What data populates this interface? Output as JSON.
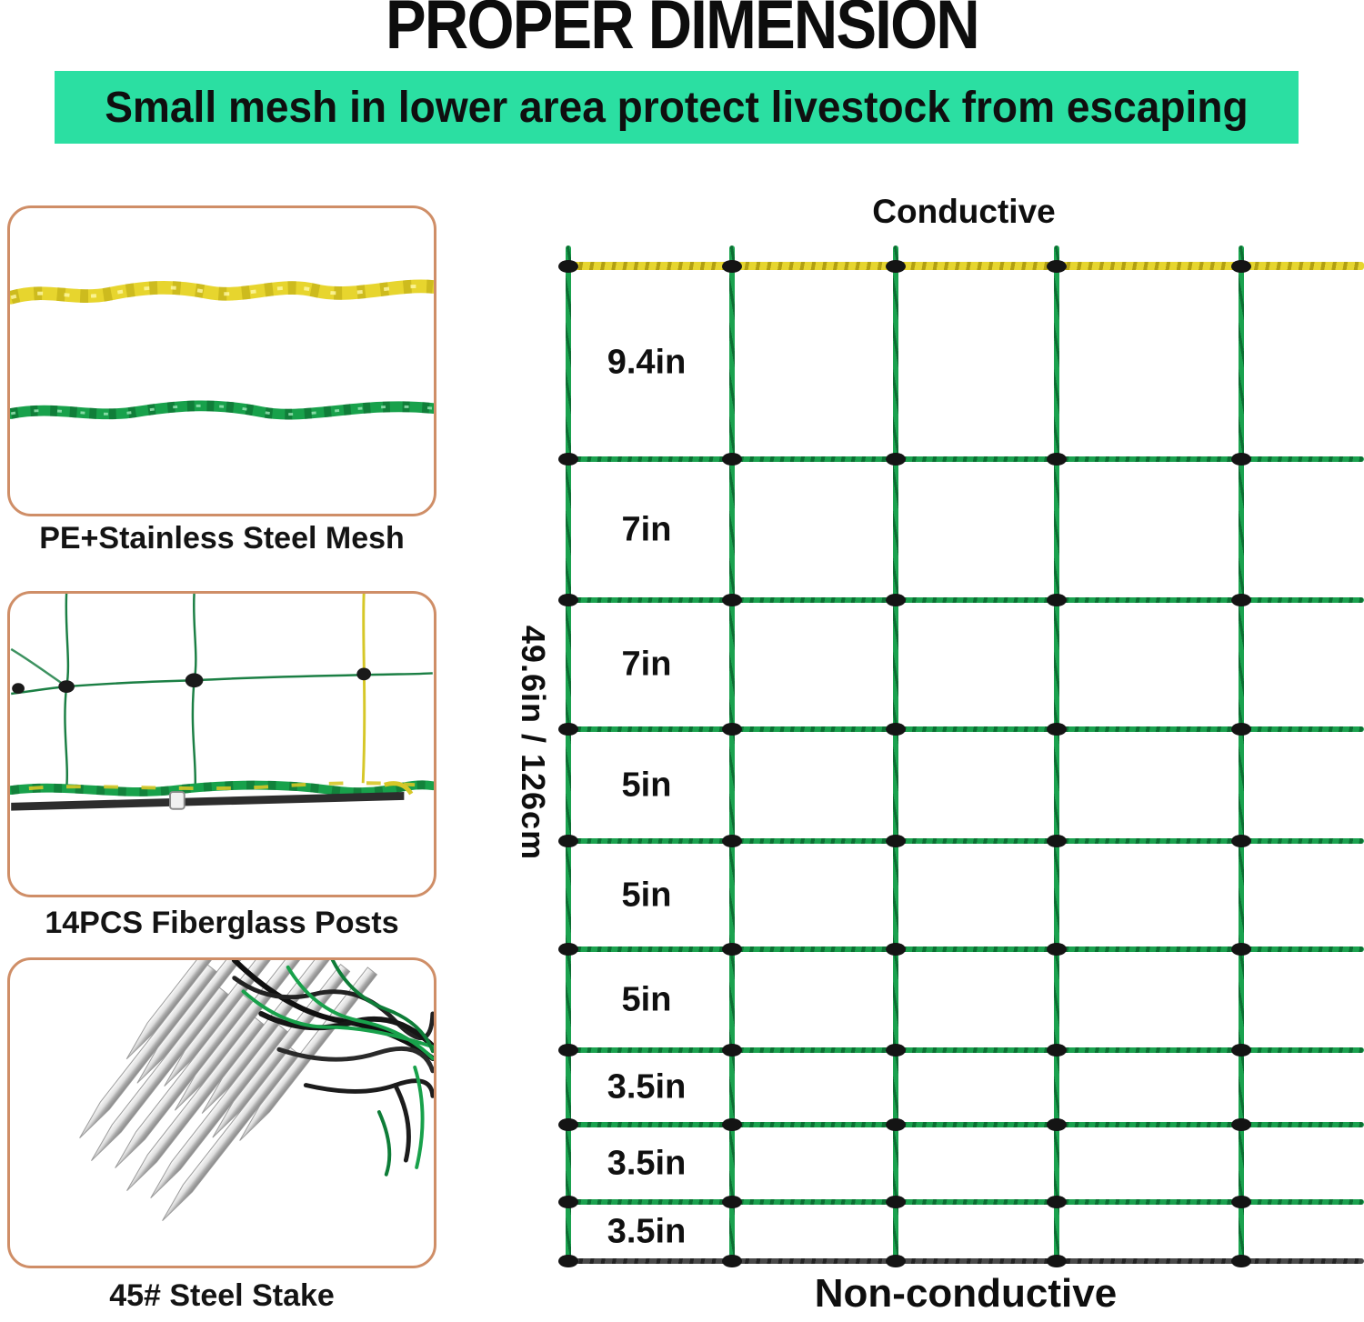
{
  "title": "PROPER DIMENSION",
  "banner": {
    "text": "Small mesh in lower area protect livestock from escaping",
    "bg_color": "#2BDFA2"
  },
  "features": [
    {
      "caption": "PE+Stainless Steel Mesh"
    },
    {
      "caption": "14PCS Fiberglass Posts"
    },
    {
      "caption": "45# Steel Stake"
    }
  ],
  "diagram": {
    "top_label": "Conductive",
    "bottom_label": "Non-conductive",
    "height_label": "49.6in / 126cm",
    "mesh_rows": [
      "9.4in",
      "7in",
      "7in",
      "5in",
      "5in",
      "5in",
      "3.5in",
      "3.5in",
      "3.5in"
    ],
    "colors": {
      "conductive_wire": "#E6D52F",
      "mesh_wire": "#1BA24F",
      "bottom_wire": "#3E3E3E",
      "knot": "#141414",
      "frame_border": "#CF8E67"
    }
  }
}
